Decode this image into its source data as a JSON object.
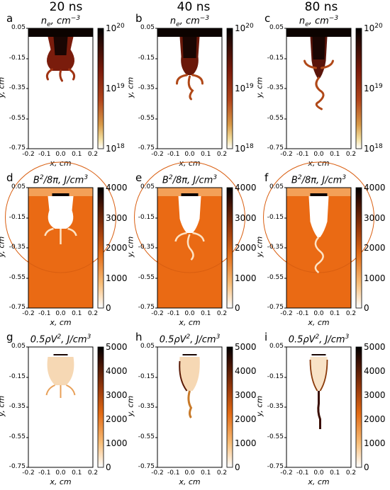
{
  "column_titles": [
    "20 ns",
    "40 ns",
    "80 ns"
  ],
  "panel_letters": [
    "a",
    "b",
    "c",
    "d",
    "e",
    "f",
    "g",
    "h",
    "i"
  ],
  "rows": [
    {
      "title_main": "n",
      "title_sub": "e",
      "title_rest": ", cm",
      "title_sup": "−3",
      "colorbar_ticks_exp": [
        {
          "base": "10",
          "exp": "20"
        },
        {
          "base": "10",
          "exp": "19"
        },
        {
          "base": "10",
          "exp": "18"
        }
      ]
    },
    {
      "title_main": "B",
      "title_sup": "2",
      "title_rest": "/8π, J/cm",
      "title_sup2": "3",
      "colorbar_ticks": [
        "4000",
        "3000",
        "2000",
        "1000",
        "0"
      ]
    },
    {
      "title_main": "0.5ρV",
      "title_sup": "2",
      "title_rest": ", J/cm",
      "title_sup2": "3",
      "colorbar_ticks": [
        "5000",
        "4000",
        "3000",
        "2000",
        "1000",
        "0"
      ]
    }
  ],
  "axes": {
    "xlabel": "x, cm",
    "ylabel": "y, cm",
    "xticks": [
      "-0.2",
      "-0.1",
      "0.0",
      "0.1",
      "0.2"
    ],
    "yticks": [
      "0.05",
      "-0.15",
      "-0.35",
      "-0.55",
      "-0.75"
    ]
  },
  "colors": {
    "density_dark": "#1a0a05",
    "density_mid": "#8b1a0c",
    "field_bg": "#ea6a14",
    "field_dark": "#0c0400",
    "gold": "#c89a3c"
  }
}
